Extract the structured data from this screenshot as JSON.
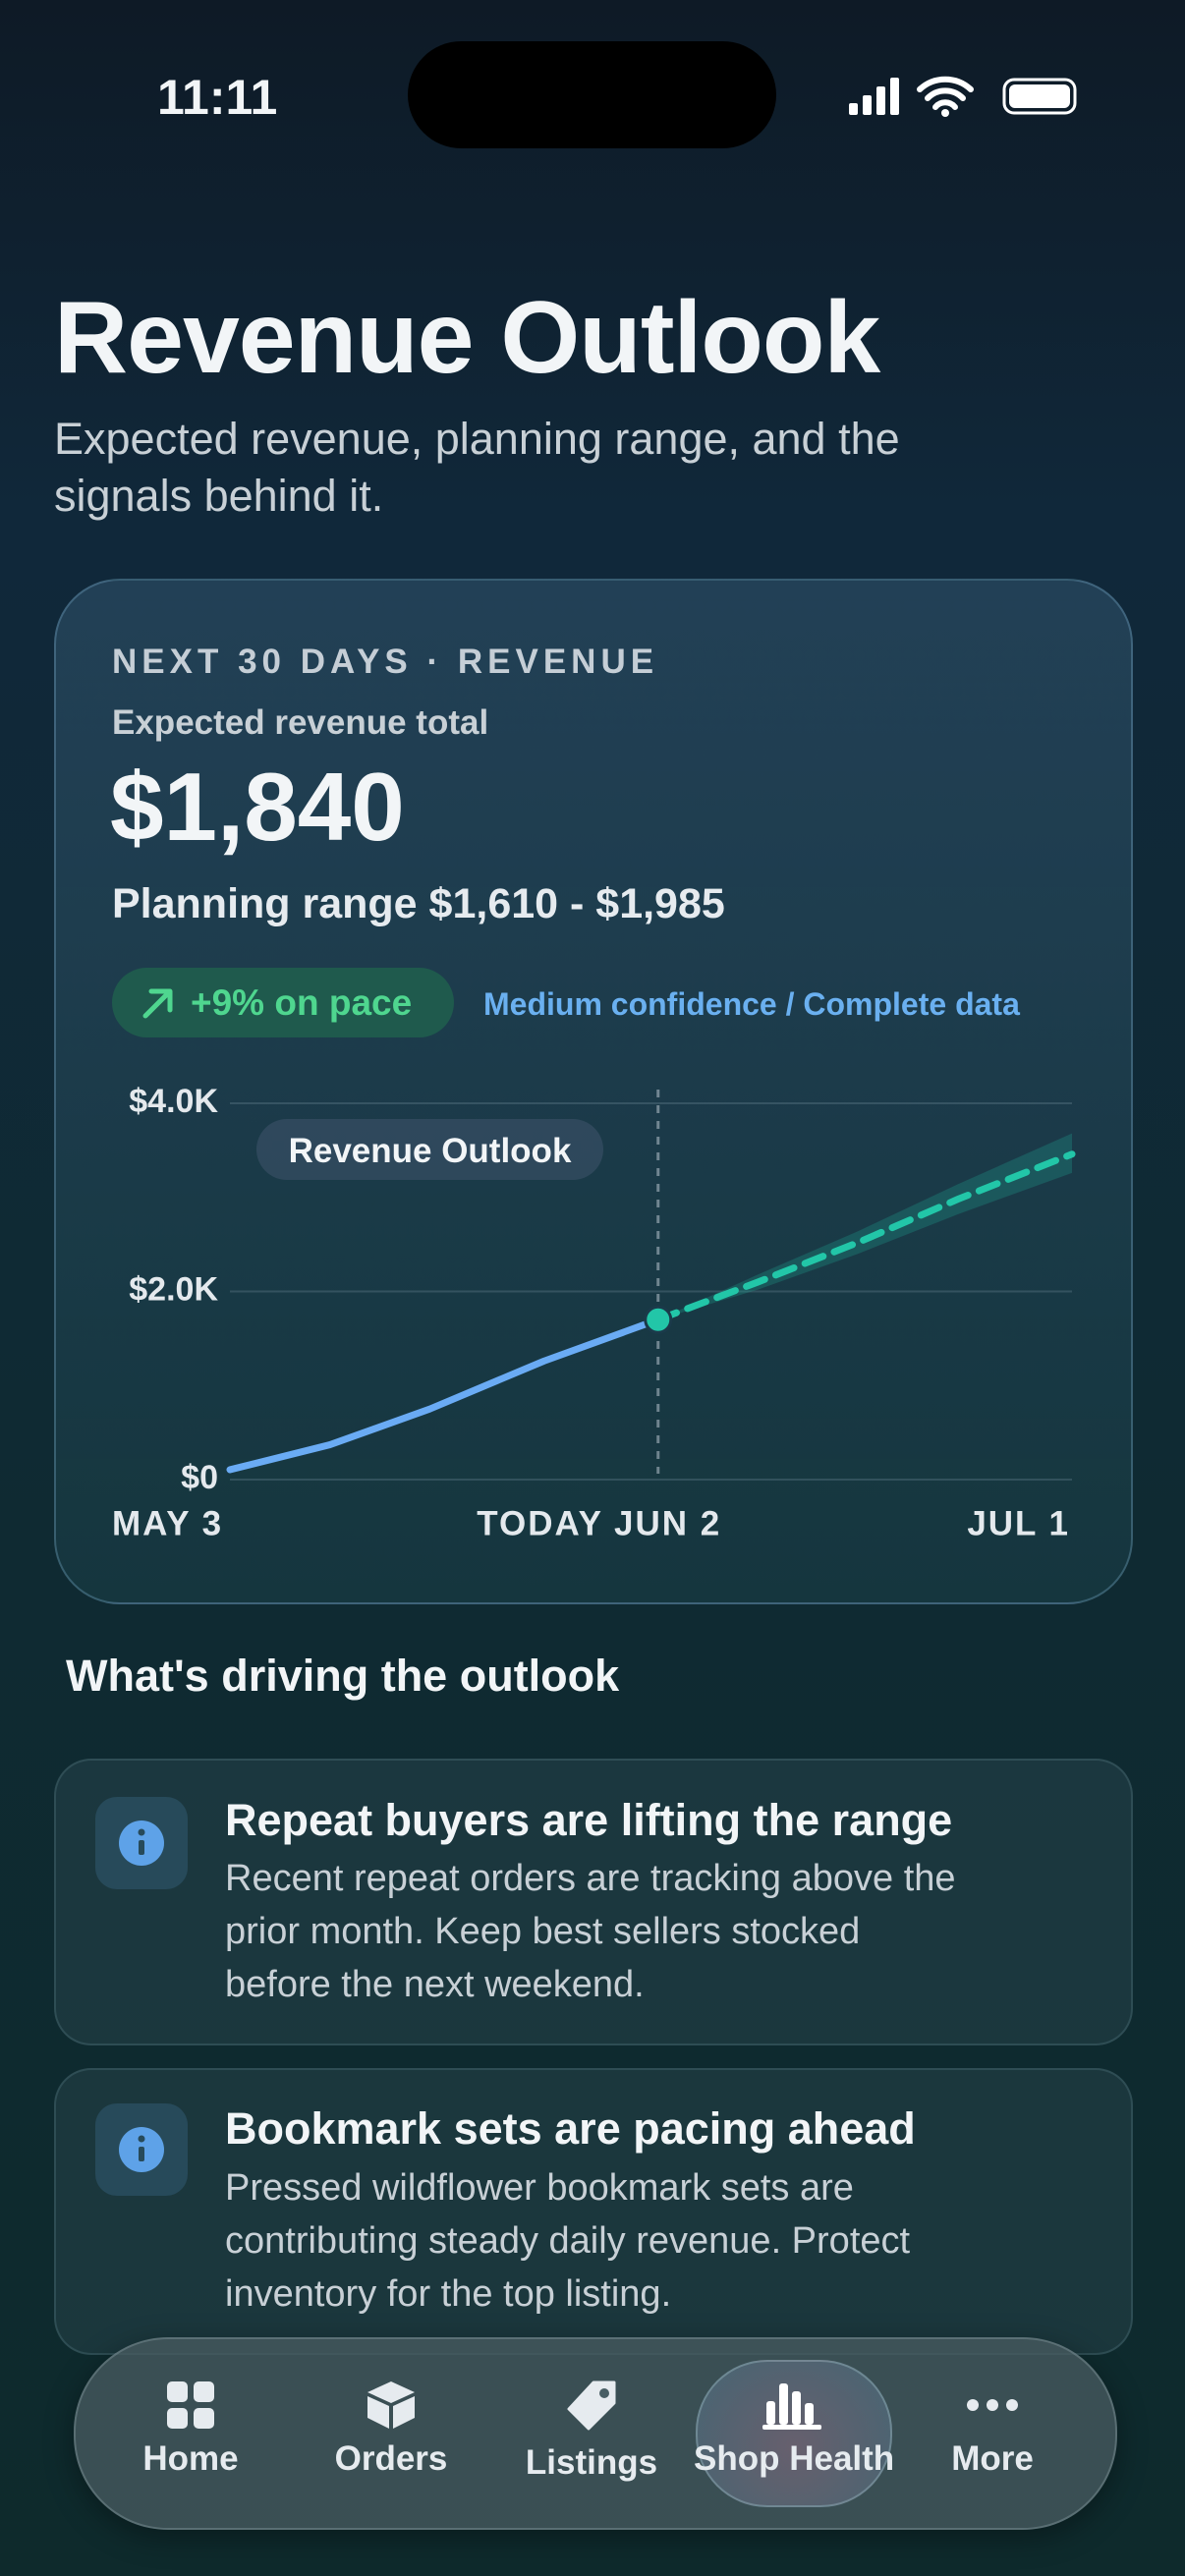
{
  "status_bar": {
    "time": "11:11"
  },
  "header": {
    "title": "Revenue Outlook",
    "subtitle": [
      "Expected revenue, planning range, and the",
      "signals behind it."
    ]
  },
  "summary": {
    "eyebrow": "NEXT 30 DAYS · REVENUE",
    "label": "Expected revenue total",
    "total": "$1,840",
    "range": "Planning range $1,610 - $1,985",
    "pace": "+9% on pace",
    "confidence": "Medium confidence / Complete data"
  },
  "chart": {
    "type": "line",
    "title": "Revenue Outlook",
    "xlim": [
      0,
      59
    ],
    "xticks": [
      {
        "value": 0,
        "label": "MAY 3"
      },
      {
        "value": 30,
        "label": "TODAY JUN 2"
      },
      {
        "value": 59,
        "label": "JUL 1"
      }
    ],
    "ylim": [
      0,
      4000
    ],
    "yticks": [
      {
        "value": 0,
        "label": "$0"
      },
      {
        "value": 2000,
        "label": "$2.0K"
      },
      {
        "value": 4000,
        "label": "$4.0K"
      }
    ],
    "grid": true,
    "actual": {
      "color": "#6aabf4",
      "x": [
        0,
        7,
        14,
        22,
        30
      ],
      "values": [
        105,
        370,
        750,
        1260,
        1700
      ]
    },
    "forecast": {
      "color": "#22c6a8",
      "x": [
        30,
        37,
        44,
        51,
        59
      ],
      "values": [
        1700,
        2100,
        2520,
        2980,
        3460
      ],
      "lower": [
        1700,
        2020,
        2400,
        2820,
        3260
      ],
      "upper": [
        1700,
        2180,
        2640,
        3140,
        3680
      ]
    }
  },
  "drivers": {
    "title": "What's driving the outlook",
    "items": [
      {
        "title": "Repeat buyers are lifting the range",
        "body": [
          "Recent repeat orders are tracking above the",
          "prior month. Keep best sellers stocked",
          "before the next weekend."
        ]
      },
      {
        "title": "Bookmark sets are pacing ahead",
        "body": [
          "Pressed wildflower bookmark sets are",
          "contributing steady daily revenue. Protect",
          "inventory for the top listing."
        ]
      }
    ]
  },
  "tab_bar": {
    "tabs": [
      "Home",
      "Orders",
      "Listings",
      "Shop Health",
      "More"
    ],
    "selected": 3
  }
}
